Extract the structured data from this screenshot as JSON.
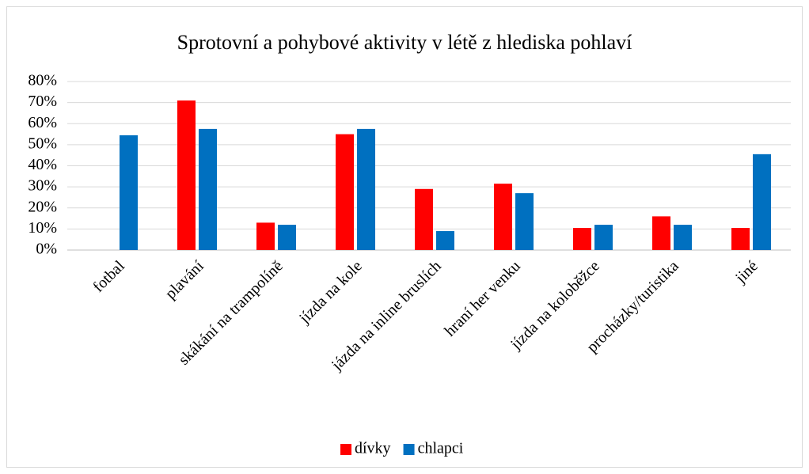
{
  "chart_data": {
    "type": "bar",
    "title": "Sprotovní a pohybové aktivity v létě z hlediska pohlaví",
    "categories": [
      "fotbal",
      "plavání",
      "skákání na trampolíně",
      "jízda na kole",
      "jázda na inline bruslích",
      "hraní her venku",
      "jízda na koloběžce",
      "procházky/turistika",
      "jiné"
    ],
    "series": [
      {
        "name": "dívky",
        "color": "#ff0000",
        "values": [
          0,
          71,
          13,
          55,
          29,
          31.5,
          10.5,
          16,
          10.5
        ]
      },
      {
        "name": "chlapci",
        "color": "#0070c0",
        "values": [
          54.5,
          57.5,
          12,
          57.5,
          9,
          27,
          12,
          12,
          45.5
        ]
      }
    ],
    "ylim": [
      0,
      80
    ],
    "yticks": [
      {
        "value": 0,
        "label": "0%"
      },
      {
        "value": 10,
        "label": "10%"
      },
      {
        "value": 20,
        "label": "20%"
      },
      {
        "value": 30,
        "label": "30%"
      },
      {
        "value": 40,
        "label": "40%"
      },
      {
        "value": 50,
        "label": "50%"
      },
      {
        "value": 60,
        "label": "60%"
      },
      {
        "value": 70,
        "label": "70%"
      },
      {
        "value": 80,
        "label": "80%"
      }
    ],
    "grid": true,
    "legend": "bottom"
  }
}
